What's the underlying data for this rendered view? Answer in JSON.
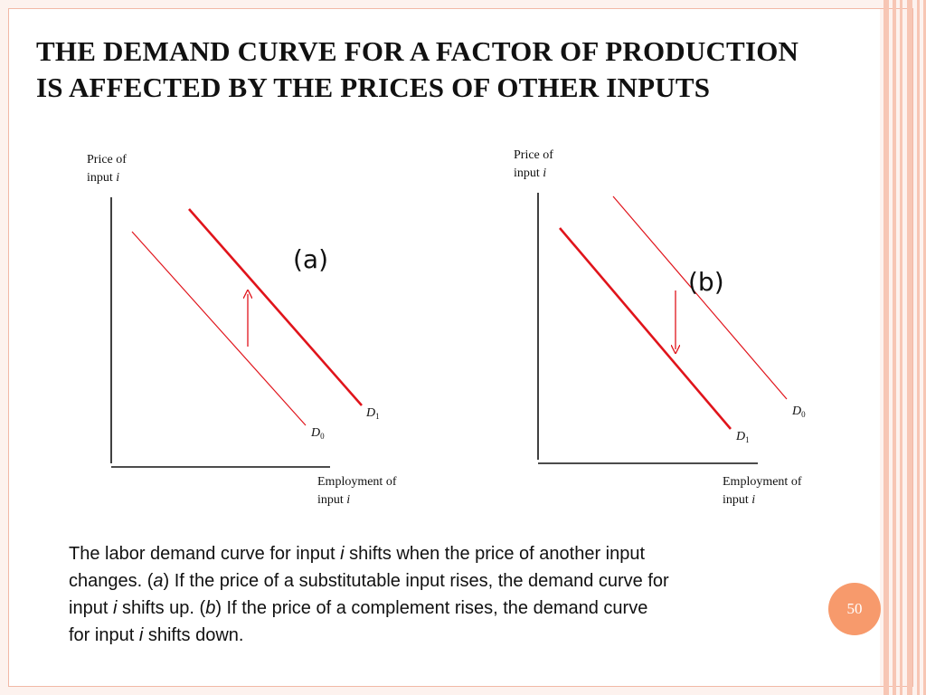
{
  "title": {
    "line1": "THE DEMAND CURVE FOR A FACTOR OF PRODUCTION",
    "line2": "IS AFFECTED BY THE PRICES OF OTHER INPUTS"
  },
  "panel_a": {
    "label": "(a)",
    "y_axis": {
      "line1": "Price of",
      "line2_prefix": "input ",
      "line2_var": "i"
    },
    "x_axis": {
      "line1": "Employment of",
      "line2_prefix": "input ",
      "line2_var": "i"
    },
    "curves": [
      {
        "letter": "D",
        "subscript": "0"
      },
      {
        "letter": "D",
        "subscript": "1"
      }
    ],
    "shift_direction": "up"
  },
  "panel_b": {
    "label": "(b)",
    "y_axis": {
      "line1": "Price of",
      "line2_prefix": "input ",
      "line2_var": "i"
    },
    "x_axis": {
      "line1": "Employment of",
      "line2_prefix": "input ",
      "line2_var": "i"
    },
    "curves": [
      {
        "letter": "D",
        "subscript": "0"
      },
      {
        "letter": "D",
        "subscript": "1"
      }
    ],
    "shift_direction": "down"
  },
  "caption": {
    "l1a": "The labor demand curve for input ",
    "l1i": "i",
    "l1b": " shifts when the price of another input",
    "l2a": "changes. (",
    "l2i": "a",
    "l2b": ") If the price of a substitutable input rises, the demand curve for",
    "l3a": "input ",
    "l3i": "i",
    "l3b": " shifts up. (",
    "l3j": "b",
    "l3c": ") If the price of a complement rises, the demand curve",
    "l4a": "for input ",
    "l4i": "i",
    "l4b": " shifts down."
  },
  "page_number": "50",
  "colors": {
    "curve": "#e0141b",
    "axis": "#111111",
    "accent": "#f79a6c",
    "border": "#f7c6b4"
  }
}
